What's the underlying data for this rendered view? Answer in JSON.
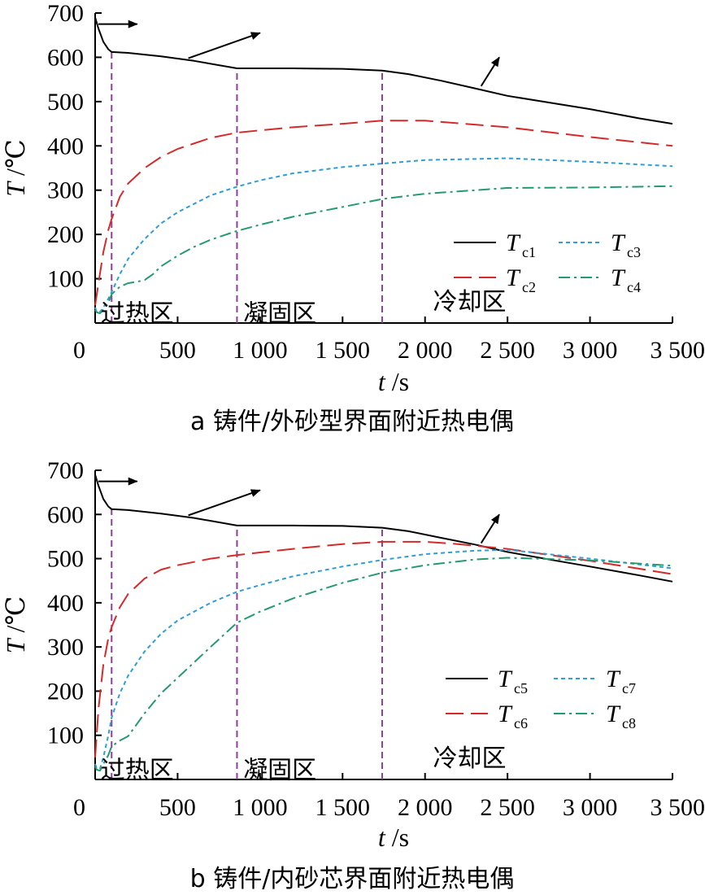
{
  "chart_data": [
    {
      "type": "line",
      "id": "a",
      "caption": "a  铸件/外砂型界面附近热电偶",
      "xlabel_var": "t",
      "xlabel_unit": "/s",
      "ylabel_var": "T",
      "ylabel_unit": "/℃",
      "xlim": [
        0,
        3500
      ],
      "ylim": [
        0,
        700
      ],
      "x_ticks": [
        0,
        500,
        1000,
        1500,
        2000,
        2500,
        3000,
        3500
      ],
      "x_tick_labels": [
        "0",
        "500",
        "1 000",
        "1 500",
        "2 000",
        "2 500",
        "3 000",
        "3 500"
      ],
      "y_ticks": [
        100,
        200,
        300,
        400,
        500,
        600,
        700
      ],
      "y_tick_labels": [
        "100",
        "200",
        "300",
        "400",
        "500",
        "600",
        "700"
      ],
      "phase_lines": [
        100,
        860,
        1740
      ],
      "annotations": [
        {
          "text": "过热区",
          "tx": 255,
          "ty": 23,
          "ax": 20,
          "ay": 675,
          "bx": 255,
          "by": 675
        },
        {
          "text": "凝固区",
          "tx": 1120,
          "ty": 23,
          "ax": 565,
          "ay": 598,
          "bx": 1000,
          "by": 655
        },
        {
          "text": "冷却区",
          "tx": 2270,
          "ty": 50,
          "ax": 2340,
          "ay": 535,
          "bx": 2450,
          "by": 600
        }
      ],
      "series": [
        {
          "name": "T",
          "sub": "c1",
          "color": "#000000",
          "dash": "",
          "x": [
            0,
            20,
            50,
            80,
            100,
            200,
            400,
            600,
            860,
            1000,
            1200,
            1500,
            1740,
            1900,
            2100,
            2300,
            2500,
            2800,
            3000,
            3300,
            3500
          ],
          "y": [
            690,
            665,
            635,
            618,
            612,
            610,
            602,
            592,
            575,
            575,
            575,
            574,
            570,
            562,
            547,
            530,
            513,
            495,
            483,
            462,
            450
          ]
        },
        {
          "name": "T",
          "sub": "c2",
          "color": "#d62a2a",
          "dash": "22,9",
          "x": [
            0,
            20,
            50,
            80,
            100,
            150,
            200,
            300,
            400,
            500,
            700,
            860,
            1000,
            1200,
            1500,
            1740,
            2000,
            2200,
            2500,
            3000,
            3500
          ],
          "y": [
            40,
            90,
            160,
            210,
            235,
            285,
            315,
            350,
            375,
            393,
            418,
            430,
            435,
            442,
            450,
            457,
            457,
            451,
            442,
            420,
            400
          ]
        },
        {
          "name": "T",
          "sub": "c3",
          "color": "#2d9fd6",
          "dash": "5,4",
          "x": [
            0,
            10,
            30,
            50,
            80,
            100,
            150,
            200,
            300,
            400,
            500,
            700,
            860,
            1000,
            1200,
            1500,
            1740,
            2000,
            2500,
            3000,
            3500
          ],
          "y": [
            35,
            25,
            25,
            35,
            55,
            70,
            110,
            145,
            190,
            225,
            250,
            288,
            308,
            322,
            338,
            352,
            360,
            368,
            372,
            364,
            354
          ]
        },
        {
          "name": "T",
          "sub": "c4",
          "color": "#239a6f",
          "dash": "14,5,3,5",
          "x": [
            0,
            10,
            30,
            50,
            80,
            100,
            150,
            200,
            250,
            300,
            350,
            400,
            500,
            600,
            700,
            860,
            1000,
            1200,
            1500,
            1740,
            2000,
            2500,
            3000,
            3500
          ],
          "y": [
            30,
            24,
            22,
            30,
            45,
            65,
            82,
            90,
            93,
            97,
            110,
            128,
            152,
            172,
            188,
            208,
            222,
            240,
            262,
            280,
            292,
            305,
            306,
            309
          ]
        }
      ],
      "legend": {
        "cols": [
          "c1|c2",
          "c3|c4"
        ]
      }
    },
    {
      "type": "line",
      "id": "b",
      "caption": "b  铸件/内砂芯界面附近热电偶",
      "xlabel_var": "t",
      "xlabel_unit": "/s",
      "ylabel_var": "T",
      "ylabel_unit": "/℃",
      "xlim": [
        0,
        3500
      ],
      "ylim": [
        0,
        700
      ],
      "x_ticks": [
        0,
        500,
        1000,
        1500,
        2000,
        2500,
        3000,
        3500
      ],
      "x_tick_labels": [
        "0",
        "500",
        "1 000",
        "1 500",
        "2 000",
        "2 500",
        "3 000",
        "3 500"
      ],
      "y_ticks": [
        100,
        200,
        300,
        400,
        500,
        600,
        700
      ],
      "y_tick_labels": [
        "100",
        "200",
        "300",
        "400",
        "500",
        "600",
        "700"
      ],
      "phase_lines": [
        100,
        860,
        1740
      ],
      "annotations": [
        {
          "text": "过热区",
          "tx": 255,
          "ty": 23,
          "ax": 20,
          "ay": 675,
          "bx": 255,
          "by": 675
        },
        {
          "text": "凝固区",
          "tx": 1120,
          "ty": 23,
          "ax": 565,
          "ay": 598,
          "bx": 1000,
          "by": 655
        },
        {
          "text": "冷却区",
          "tx": 2270,
          "ty": 50,
          "ax": 2340,
          "ay": 535,
          "bx": 2450,
          "by": 600
        }
      ],
      "series": [
        {
          "name": "T",
          "sub": "c5",
          "color": "#000000",
          "dash": "",
          "x": [
            0,
            20,
            50,
            80,
            100,
            200,
            400,
            600,
            860,
            1000,
            1200,
            1500,
            1740,
            1900,
            2100,
            2300,
            2500,
            2800,
            3000,
            3300,
            3500
          ],
          "y": [
            690,
            665,
            635,
            618,
            612,
            610,
            602,
            592,
            575,
            575,
            575,
            574,
            570,
            562,
            547,
            532,
            515,
            495,
            482,
            462,
            448
          ]
        },
        {
          "name": "T",
          "sub": "c6",
          "color": "#d62a2a",
          "dash": "22,9",
          "x": [
            0,
            20,
            50,
            80,
            100,
            150,
            200,
            300,
            400,
            500,
            700,
            860,
            1000,
            1200,
            1500,
            1740,
            2000,
            2200,
            2500,
            3000,
            3500
          ],
          "y": [
            50,
            160,
            260,
            320,
            345,
            390,
            420,
            455,
            475,
            485,
            500,
            508,
            514,
            522,
            533,
            538,
            538,
            533,
            522,
            495,
            465
          ]
        },
        {
          "name": "T",
          "sub": "c7",
          "color": "#2d9fd6",
          "dash": "5,4",
          "x": [
            0,
            10,
            30,
            50,
            80,
            100,
            150,
            200,
            300,
            400,
            500,
            700,
            860,
            1000,
            1200,
            1500,
            1740,
            2000,
            2300,
            2500,
            3000,
            3500
          ],
          "y": [
            35,
            25,
            25,
            50,
            100,
            140,
            195,
            235,
            290,
            330,
            360,
            400,
            425,
            440,
            460,
            482,
            497,
            510,
            518,
            520,
            500,
            478
          ]
        },
        {
          "name": "T",
          "sub": "c8",
          "color": "#239a6f",
          "dash": "14,5,3,5",
          "x": [
            0,
            10,
            30,
            50,
            80,
            100,
            150,
            200,
            300,
            400,
            500,
            700,
            860,
            1000,
            1200,
            1500,
            1740,
            2000,
            2300,
            2500,
            3000,
            3500
          ],
          "y": [
            30,
            22,
            20,
            35,
            55,
            75,
            88,
            98,
            150,
            195,
            230,
            300,
            355,
            380,
            410,
            445,
            468,
            485,
            498,
            502,
            496,
            484
          ]
        }
      ],
      "legend": {
        "cols": [
          "c5|c6",
          "c7|c8"
        ]
      }
    }
  ]
}
